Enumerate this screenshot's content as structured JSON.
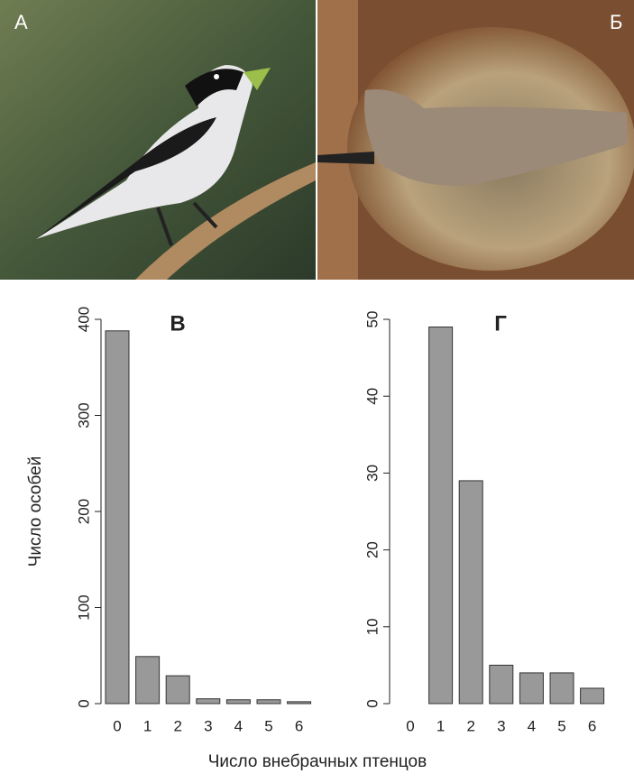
{
  "photos": [
    {
      "label": "А"
    },
    {
      "label": "Б"
    }
  ],
  "xlabel": "Число внебрачных птенцов",
  "chart_data": [
    {
      "type": "bar",
      "title": "В",
      "ylabel": "Число особей",
      "categories": [
        "0",
        "1",
        "2",
        "3",
        "4",
        "5",
        "6"
      ],
      "values": [
        388,
        49,
        29,
        5,
        4,
        4,
        2
      ],
      "color": "#999999",
      "ylim": [
        0,
        400
      ],
      "yticks": [
        0,
        100,
        200,
        300,
        400
      ]
    },
    {
      "type": "bar",
      "title": "Г",
      "categories": [
        "0",
        "1",
        "2",
        "3",
        "4",
        "5",
        "6"
      ],
      "values": [
        0,
        49,
        29,
        5,
        4,
        4,
        2
      ],
      "color": "#999999",
      "ylim": [
        0,
        50
      ],
      "yticks": [
        0,
        10,
        20,
        30,
        40,
        50
      ]
    }
  ]
}
